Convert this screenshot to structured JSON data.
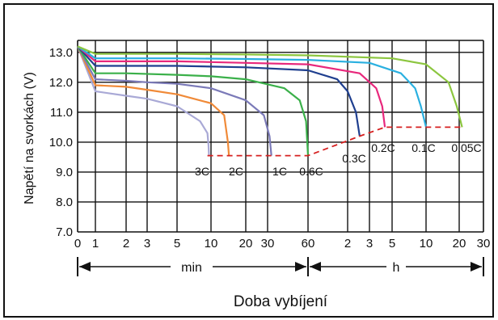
{
  "chart_data": {
    "type": "line",
    "ylabel": "Napětí na svorkách (V)",
    "xlabel": "Doba vybíjení",
    "yticks": [
      "13.0",
      "12.0",
      "11.0",
      "10.0",
      "9.0",
      "8.0",
      "7.0"
    ],
    "ylim": [
      7.0,
      13.4
    ],
    "xticks": [
      "0",
      "1",
      "2",
      "3",
      "5",
      "10",
      "20",
      "30",
      "60",
      "2",
      "3",
      "5",
      "10",
      "20",
      "30"
    ],
    "x_units": {
      "min": "min",
      "h": "h"
    },
    "x_scale": "log (time in minutes, then hours)",
    "grid": true,
    "series": [
      {
        "name": "3C",
        "color": "#a9a9d6",
        "x_minutes": [
          0,
          1,
          2,
          3,
          5,
          8,
          9.3,
          9.5,
          9.6
        ],
        "y": [
          13.2,
          11.7,
          11.55,
          11.45,
          11.2,
          10.7,
          10.3,
          9.9,
          9.55
        ]
      },
      {
        "name": "2C",
        "color": "#f08a38",
        "x_minutes": [
          0,
          1,
          2,
          3,
          5,
          10,
          13,
          14,
          14.3
        ],
        "y": [
          13.2,
          11.9,
          11.85,
          11.75,
          11.6,
          11.3,
          10.9,
          10.0,
          9.55
        ]
      },
      {
        "name": "1C",
        "color": "#7b7ab8",
        "x_minutes": [
          0,
          1,
          2,
          3,
          5,
          10,
          20,
          28,
          31,
          32
        ],
        "y": [
          13.2,
          12.1,
          12.05,
          12.0,
          11.95,
          11.8,
          11.4,
          10.9,
          10.2,
          9.55
        ]
      },
      {
        "name": "0.6C",
        "color": "#3bb04a",
        "x_minutes": [
          0,
          1,
          2,
          5,
          10,
          20,
          40,
          52,
          58,
          60
        ],
        "y": [
          13.2,
          12.3,
          12.3,
          12.25,
          12.2,
          12.1,
          11.8,
          11.4,
          10.7,
          9.55
        ]
      },
      {
        "name": "0.3C",
        "color": "#1f3f8f",
        "x_minutes": [
          0,
          1,
          5,
          20,
          60,
          100,
          120,
          140,
          150
        ],
        "y": [
          13.2,
          12.55,
          12.55,
          12.5,
          12.4,
          12.1,
          11.7,
          11.0,
          10.2
        ]
      },
      {
        "name": "0.2C",
        "color": "#e8287c",
        "x_minutes": [
          0,
          1,
          5,
          20,
          60,
          150,
          210,
          240,
          255
        ],
        "y": [
          13.2,
          12.7,
          12.7,
          12.65,
          12.6,
          12.3,
          11.8,
          11.2,
          10.5
        ]
      },
      {
        "name": "0.1C",
        "color": "#2ab0e0",
        "x_minutes": [
          0,
          1,
          5,
          20,
          60,
          180,
          360,
          480,
          540,
          600
        ],
        "y": [
          13.2,
          12.8,
          12.8,
          12.78,
          12.75,
          12.65,
          12.3,
          11.8,
          11.2,
          10.5
        ]
      },
      {
        "name": "0.05C",
        "color": "#8cc63f",
        "x_minutes": [
          0,
          1,
          5,
          20,
          60,
          300,
          600,
          960,
          1140,
          1260
        ],
        "y": [
          13.2,
          12.95,
          12.95,
          12.93,
          12.9,
          12.8,
          12.6,
          12.0,
          11.2,
          10.5
        ]
      }
    ],
    "end_voltage_line": {
      "color": "#d62020",
      "x_minutes": [
        9.3,
        60,
        150,
        255,
        1260
      ],
      "y": [
        9.55,
        9.55,
        10.2,
        10.5,
        10.5
      ]
    }
  }
}
